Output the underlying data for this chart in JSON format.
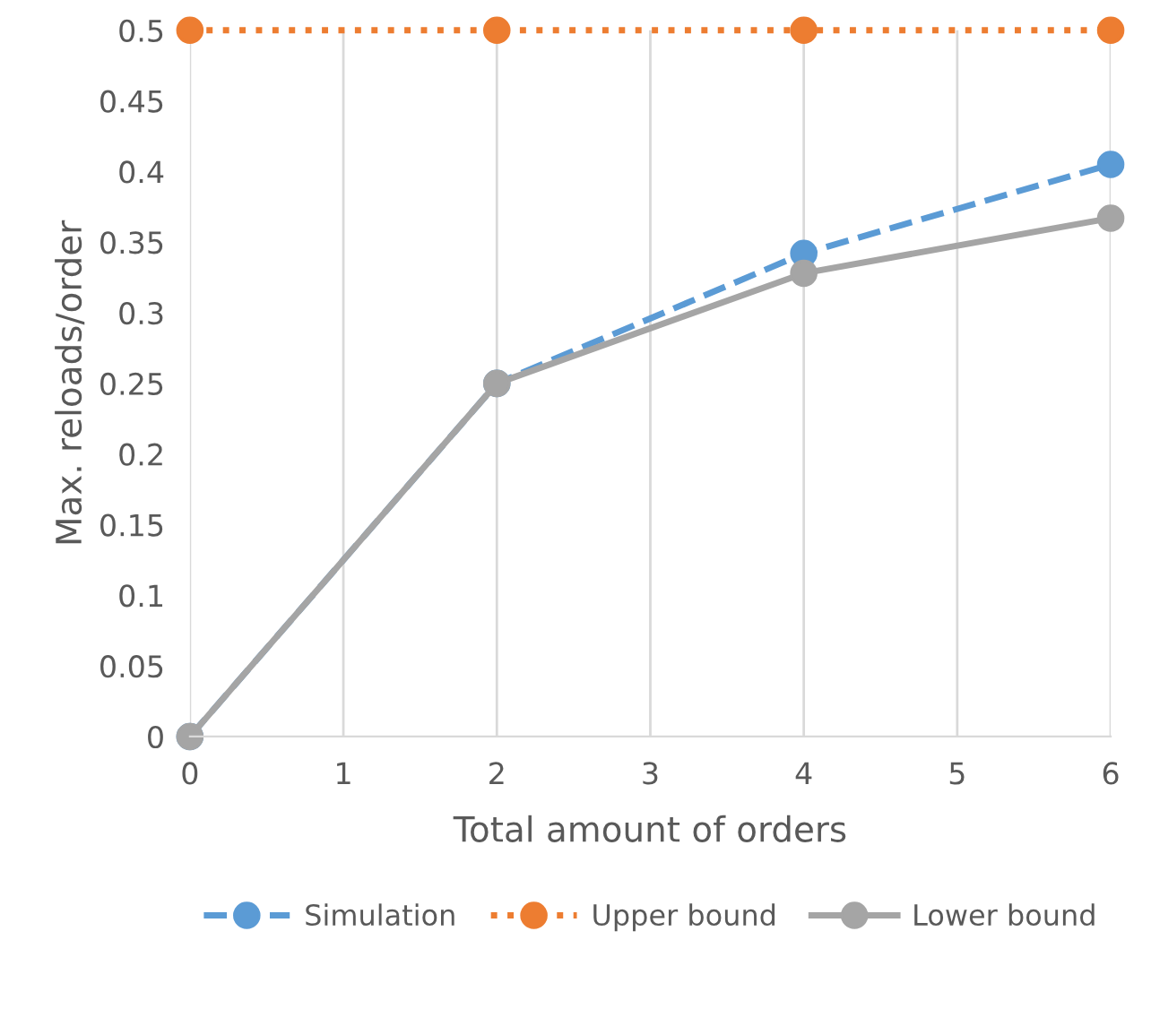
{
  "chart_data": {
    "type": "line",
    "xlabel": "Total amount of orders",
    "ylabel": "Max. reloads/order",
    "x": [
      0,
      2,
      4,
      6
    ],
    "series": [
      {
        "name": "Simulation",
        "color": "#5b9bd5",
        "values": [
          0,
          0.25,
          0.342,
          0.405
        ],
        "line_style": "dashed"
      },
      {
        "name": "Upper bound",
        "color": "#ed7d31",
        "values": [
          0.5,
          0.5,
          0.5,
          0.5
        ],
        "line_style": "dotted"
      },
      {
        "name": "Lower bound",
        "color": "#a5a5a5",
        "values": [
          0,
          0.25,
          0.328,
          0.367
        ],
        "line_style": "solid"
      }
    ],
    "marker": "circle",
    "grid": "x",
    "legend": "bottom",
    "xlim": [
      0,
      6
    ],
    "xticks": [
      0,
      1,
      2,
      3,
      4,
      5,
      6
    ],
    "ylim": [
      0,
      0.5
    ],
    "yticks": [
      0,
      0.05,
      0.1,
      0.15,
      0.2,
      0.25,
      0.3,
      0.35,
      0.4,
      0.45,
      0.5
    ]
  }
}
